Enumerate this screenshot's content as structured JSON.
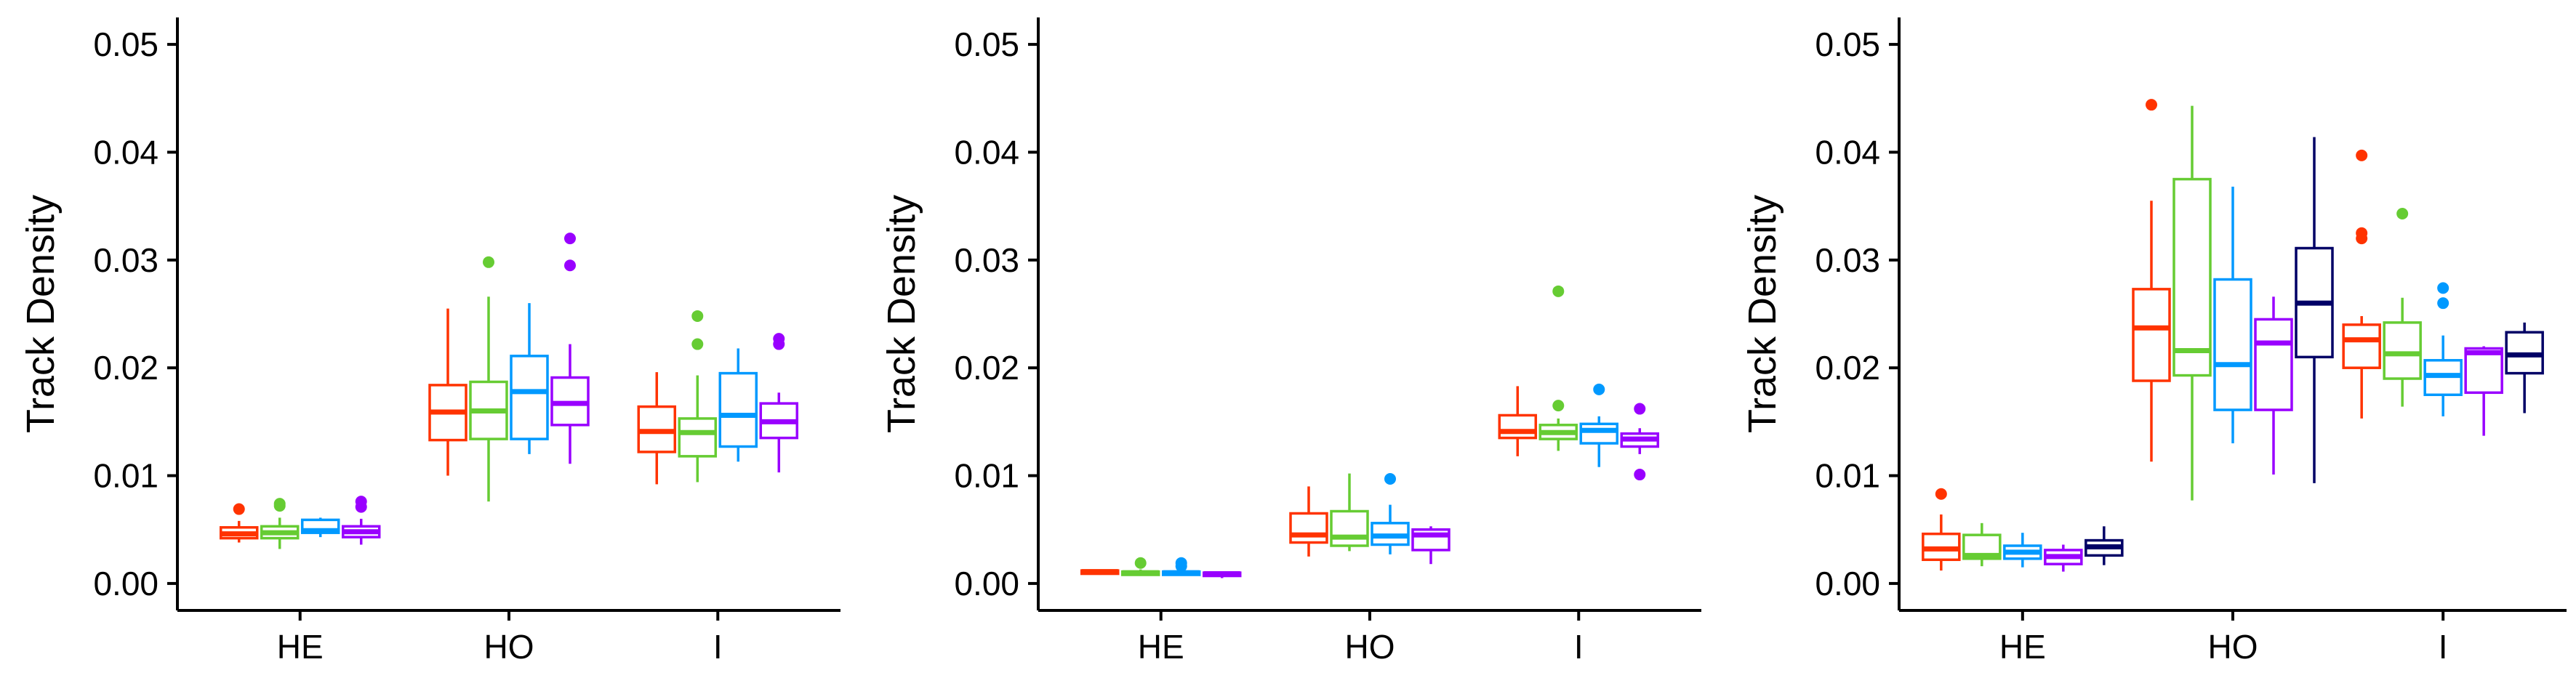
{
  "chart_data": [
    {
      "type": "box",
      "ylabel": "Track Density",
      "ylim": [
        -0.0025,
        0.0525
      ],
      "yticks": [
        0.0,
        0.01,
        0.02,
        0.03,
        0.04,
        0.05
      ],
      "ytick_labels": [
        "0.00",
        "0.01",
        "0.02",
        "0.03",
        "0.04",
        "0.05"
      ],
      "grid": false,
      "categories": [
        "HE",
        "HO",
        "I"
      ],
      "series": [
        {
          "color": "#ff3300",
          "boxes": [
            {
              "min": 0.0038,
              "q1": 0.0042,
              "median": 0.0046,
              "q3": 0.0052,
              "max": 0.0058,
              "outliers": [
                0.0069
              ]
            },
            {
              "min": 0.01,
              "q1": 0.0133,
              "median": 0.0159,
              "q3": 0.0184,
              "max": 0.0255,
              "outliers": []
            },
            {
              "min": 0.0092,
              "q1": 0.0122,
              "median": 0.0141,
              "q3": 0.0164,
              "max": 0.0196,
              "outliers": []
            }
          ]
        },
        {
          "color": "#66cc33",
          "boxes": [
            {
              "min": 0.0032,
              "q1": 0.0042,
              "median": 0.0047,
              "q3": 0.0053,
              "max": 0.0061,
              "outliers": [
                0.0072,
                0.0074
              ]
            },
            {
              "min": 0.0076,
              "q1": 0.0134,
              "median": 0.016,
              "q3": 0.0187,
              "max": 0.0266,
              "outliers": [
                0.0298
              ]
            },
            {
              "min": 0.0094,
              "q1": 0.0118,
              "median": 0.014,
              "q3": 0.0153,
              "max": 0.0193,
              "outliers": [
                0.0222,
                0.0248
              ]
            }
          ]
        },
        {
          "color": "#0099ff",
          "boxes": [
            {
              "min": 0.0043,
              "q1": 0.0047,
              "median": 0.0049,
              "q3": 0.0059,
              "max": 0.0061,
              "outliers": []
            },
            {
              "min": 0.012,
              "q1": 0.0134,
              "median": 0.0178,
              "q3": 0.0211,
              "max": 0.026,
              "outliers": []
            },
            {
              "min": 0.0113,
              "q1": 0.0127,
              "median": 0.0156,
              "q3": 0.0195,
              "max": 0.0218,
              "outliers": []
            }
          ]
        },
        {
          "color": "#9900ff",
          "boxes": [
            {
              "min": 0.0036,
              "q1": 0.0043,
              "median": 0.0048,
              "q3": 0.0053,
              "max": 0.006,
              "outliers": [
                0.0071,
                0.0076
              ]
            },
            {
              "min": 0.0111,
              "q1": 0.0147,
              "median": 0.0167,
              "q3": 0.0191,
              "max": 0.0222,
              "outliers": [
                0.0295,
                0.032
              ]
            },
            {
              "min": 0.0103,
              "q1": 0.0135,
              "median": 0.015,
              "q3": 0.0167,
              "max": 0.0177,
              "outliers": [
                0.0222,
                0.0227
              ]
            }
          ]
        }
      ]
    },
    {
      "type": "box",
      "ylabel": "Track Density",
      "ylim": [
        -0.0025,
        0.0525
      ],
      "yticks": [
        0.0,
        0.01,
        0.02,
        0.03,
        0.04,
        0.05
      ],
      "ytick_labels": [
        "0.00",
        "0.01",
        "0.02",
        "0.03",
        "0.04",
        "0.05"
      ],
      "grid": false,
      "categories": [
        "HE",
        "HO",
        "I"
      ],
      "series": [
        {
          "color": "#ff3300",
          "boxes": [
            {
              "min": 0.0008,
              "q1": 0.0009,
              "median": 0.0011,
              "q3": 0.0012,
              "max": 0.0013,
              "outliers": []
            },
            {
              "min": 0.0025,
              "q1": 0.0038,
              "median": 0.0045,
              "q3": 0.0065,
              "max": 0.009,
              "outliers": []
            },
            {
              "min": 0.0118,
              "q1": 0.0135,
              "median": 0.0141,
              "q3": 0.0156,
              "max": 0.0183,
              "outliers": []
            }
          ]
        },
        {
          "color": "#66cc33",
          "boxes": [
            {
              "min": 0.0007,
              "q1": 0.0008,
              "median": 0.001,
              "q3": 0.0011,
              "max": 0.0013,
              "outliers": [
                0.0019
              ]
            },
            {
              "min": 0.003,
              "q1": 0.0035,
              "median": 0.0043,
              "q3": 0.0067,
              "max": 0.0102,
              "outliers": []
            },
            {
              "min": 0.0123,
              "q1": 0.0134,
              "median": 0.014,
              "q3": 0.0147,
              "max": 0.0153,
              "outliers": [
                0.0165,
                0.0271
              ]
            }
          ]
        },
        {
          "color": "#0099ff",
          "boxes": [
            {
              "min": 0.0007,
              "q1": 0.0008,
              "median": 0.001,
              "q3": 0.0011,
              "max": 0.0013,
              "outliers": [
                0.0016,
                0.0019
              ]
            },
            {
              "min": 0.0027,
              "q1": 0.0036,
              "median": 0.0044,
              "q3": 0.0056,
              "max": 0.0073,
              "outliers": [
                0.0097
              ]
            },
            {
              "min": 0.0108,
              "q1": 0.013,
              "median": 0.0142,
              "q3": 0.0148,
              "max": 0.0155,
              "outliers": [
                0.018
              ]
            }
          ]
        },
        {
          "color": "#9900ff",
          "boxes": [
            {
              "min": 0.0005,
              "q1": 0.0007,
              "median": 0.0009,
              "q3": 0.001,
              "max": 0.0011,
              "outliers": []
            },
            {
              "min": 0.0018,
              "q1": 0.0031,
              "median": 0.0045,
              "q3": 0.005,
              "max": 0.0053,
              "outliers": []
            },
            {
              "min": 0.012,
              "q1": 0.0127,
              "median": 0.0134,
              "q3": 0.0139,
              "max": 0.0144,
              "outliers": [
                0.0101,
                0.0162
              ]
            }
          ]
        }
      ]
    },
    {
      "type": "box",
      "ylabel": "Track Density",
      "ylim": [
        -0.0025,
        0.0525
      ],
      "yticks": [
        0.0,
        0.01,
        0.02,
        0.03,
        0.04,
        0.05
      ],
      "ytick_labels": [
        "0.00",
        "0.01",
        "0.02",
        "0.03",
        "0.04",
        "0.05"
      ],
      "grid": false,
      "categories": [
        "HE",
        "HO",
        "I"
      ],
      "series": [
        {
          "color": "#ff3300",
          "boxes": [
            {
              "min": 0.0012,
              "q1": 0.0022,
              "median": 0.0032,
              "q3": 0.0046,
              "max": 0.0064,
              "outliers": [
                0.0083
              ]
            },
            {
              "min": 0.0113,
              "q1": 0.0188,
              "median": 0.0237,
              "q3": 0.0273,
              "max": 0.0355,
              "outliers": [
                0.0444
              ]
            },
            {
              "min": 0.0153,
              "q1": 0.02,
              "median": 0.0226,
              "q3": 0.024,
              "max": 0.0248,
              "outliers": [
                0.032,
                0.0325,
                0.0397
              ]
            }
          ]
        },
        {
          "color": "#66cc33",
          "boxes": [
            {
              "min": 0.0016,
              "q1": 0.0023,
              "median": 0.0026,
              "q3": 0.0045,
              "max": 0.0056,
              "outliers": []
            },
            {
              "min": 0.0077,
              "q1": 0.0193,
              "median": 0.0216,
              "q3": 0.0375,
              "max": 0.0443,
              "outliers": []
            },
            {
              "min": 0.0164,
              "q1": 0.019,
              "median": 0.0213,
              "q3": 0.0242,
              "max": 0.0265,
              "outliers": [
                0.0343
              ]
            }
          ]
        },
        {
          "color": "#0099ff",
          "boxes": [
            {
              "min": 0.0015,
              "q1": 0.0023,
              "median": 0.0029,
              "q3": 0.0035,
              "max": 0.0047,
              "outliers": []
            },
            {
              "min": 0.013,
              "q1": 0.0161,
              "median": 0.0203,
              "q3": 0.0282,
              "max": 0.0368,
              "outliers": []
            },
            {
              "min": 0.0155,
              "q1": 0.0175,
              "median": 0.0193,
              "q3": 0.0207,
              "max": 0.023,
              "outliers": [
                0.026,
                0.0274
              ]
            }
          ]
        },
        {
          "color": "#9900ff",
          "boxes": [
            {
              "min": 0.0011,
              "q1": 0.0018,
              "median": 0.0025,
              "q3": 0.0031,
              "max": 0.0036,
              "outliers": []
            },
            {
              "min": 0.0101,
              "q1": 0.0161,
              "median": 0.0223,
              "q3": 0.0245,
              "max": 0.0266,
              "outliers": []
            },
            {
              "min": 0.0137,
              "q1": 0.0177,
              "median": 0.0214,
              "q3": 0.0218,
              "max": 0.022,
              "outliers": []
            }
          ]
        },
        {
          "color": "#000066",
          "boxes": [
            {
              "min": 0.0017,
              "q1": 0.0026,
              "median": 0.0034,
              "q3": 0.004,
              "max": 0.0053,
              "outliers": []
            },
            {
              "min": 0.0093,
              "q1": 0.021,
              "median": 0.026,
              "q3": 0.0311,
              "max": 0.0414,
              "outliers": []
            },
            {
              "min": 0.0158,
              "q1": 0.0195,
              "median": 0.0212,
              "q3": 0.0233,
              "max": 0.0242,
              "outliers": []
            }
          ]
        }
      ]
    }
  ]
}
